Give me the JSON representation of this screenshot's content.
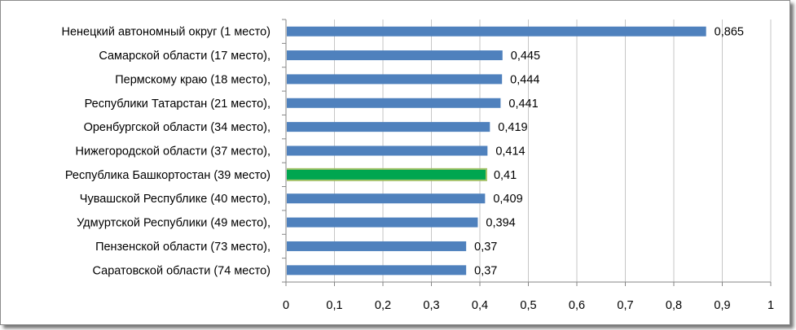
{
  "chart_data": {
    "type": "bar",
    "orientation": "horizontal",
    "categories": [
      "Ненецкий автономный округ (1 место)",
      "Самарской области (17 место),",
      "Пермскому краю (18 место),",
      "Республики Татарстан (21 место),",
      "Оренбургской области (34 место),",
      "Нижегородской области (37 место),",
      "Республика Башкортостан (39 место)",
      "Чувашской Республике (40 место),",
      "Удмуртской Республики (49 место),",
      "Пензенской области (73 место),",
      "Саратовской области (74 место)"
    ],
    "values": [
      0.865,
      0.445,
      0.444,
      0.441,
      0.419,
      0.414,
      0.41,
      0.409,
      0.394,
      0.37,
      0.37
    ],
    "value_labels": [
      "0,865",
      "0,445",
      "0,444",
      "0,441",
      "0,419",
      "0,414",
      "0,41",
      "0,409",
      "0,394",
      "0,37",
      "0,37"
    ],
    "highlight_index": 6,
    "xlim": [
      0,
      1
    ],
    "xticks": [
      0,
      0.1,
      0.2,
      0.3,
      0.4,
      0.5,
      0.6,
      0.7,
      0.8,
      0.9,
      1
    ],
    "xtick_labels": [
      "0",
      "0,1",
      "0,2",
      "0,3",
      "0,4",
      "0,5",
      "0,6",
      "0,7",
      "0,8",
      "0,9",
      "1"
    ],
    "grid": true,
    "legend": "none",
    "colors": {
      "bar": "#4f81bd",
      "highlight": "#00a650",
      "highlight_border": "#9bbb59",
      "grid": "#c6c6c6",
      "axis": "#868686"
    }
  }
}
